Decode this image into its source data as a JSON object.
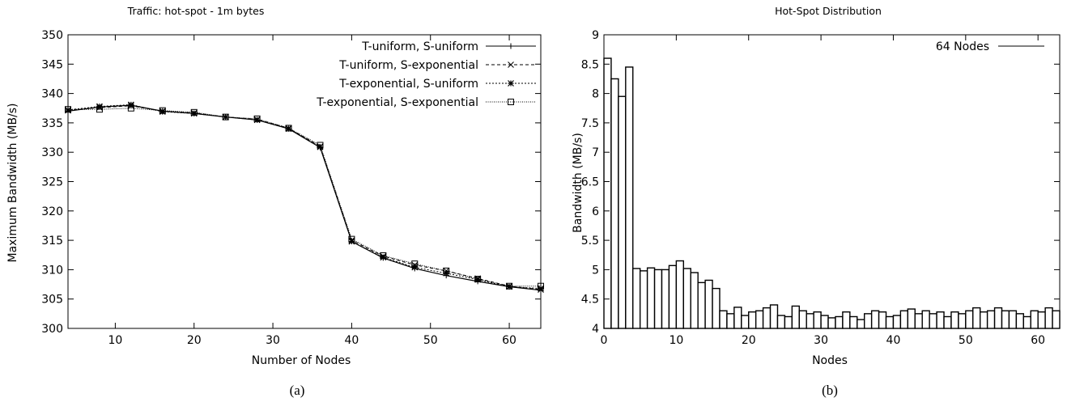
{
  "chart_data": [
    {
      "type": "line",
      "title": "Traffic: hot-spot - 1m bytes",
      "xlabel": "Number of Nodes",
      "ylabel": "Maximum Bandwidth (MB/s)",
      "caption": "(a)",
      "xlim": [
        4,
        64
      ],
      "ylim": [
        300,
        350
      ],
      "xticks": [
        10,
        20,
        30,
        40,
        50,
        60
      ],
      "yticks": [
        300,
        305,
        310,
        315,
        320,
        325,
        330,
        335,
        340,
        345,
        350
      ],
      "legend_position": "top-right",
      "x": [
        4,
        8,
        12,
        16,
        20,
        24,
        28,
        32,
        36,
        40,
        44,
        48,
        52,
        56,
        60,
        64
      ],
      "series": [
        {
          "name": "T-uniform, S-uniform",
          "marker": "plus",
          "dash": "solid",
          "values": [
            337.0,
            337.7,
            338.0,
            337.0,
            336.6,
            336.0,
            335.5,
            334.0,
            330.8,
            314.8,
            312.0,
            310.2,
            309.0,
            308.0,
            307.1,
            306.5
          ]
        },
        {
          "name": "T-uniform, S-exponential",
          "marker": "cross",
          "dash": "dashed",
          "values": [
            337.1,
            337.6,
            337.9,
            337.0,
            336.7,
            336.0,
            335.6,
            334.1,
            331.0,
            315.0,
            312.3,
            310.8,
            309.8,
            308.5,
            307.2,
            306.6
          ]
        },
        {
          "name": "T-exponential, S-uniform",
          "marker": "star",
          "dash": "dotted",
          "values": [
            337.2,
            337.8,
            338.1,
            336.9,
            336.6,
            336.0,
            335.5,
            334.0,
            330.9,
            314.8,
            312.1,
            310.4,
            309.4,
            308.3,
            307.1,
            306.8
          ]
        },
        {
          "name": "T-exponential, S-exponential",
          "marker": "square",
          "dash": "fine-dotted",
          "values": [
            337.3,
            337.3,
            337.5,
            337.1,
            336.8,
            336.0,
            335.7,
            334.1,
            331.2,
            315.2,
            312.4,
            311.0,
            309.8,
            308.4,
            307.2,
            307.2
          ]
        }
      ]
    },
    {
      "type": "bar",
      "title": "Hot-Spot Distribution",
      "xlabel": "Nodes",
      "ylabel": "Bandwidth (MB/s)",
      "caption": "(b)",
      "xlim": [
        0,
        63
      ],
      "ylim": [
        4,
        9
      ],
      "xticks": [
        0,
        10,
        20,
        30,
        40,
        50,
        60
      ],
      "yticks": [
        4,
        4.5,
        5,
        5.5,
        6,
        6.5,
        7,
        7.5,
        8,
        8.5,
        9
      ],
      "yticks_labels": [
        "4",
        "4.5",
        "5",
        "5.5",
        "6",
        "6.5",
        "7",
        "7.5",
        "8",
        "8.5",
        "9"
      ],
      "legend_position": "top-right",
      "series": [
        {
          "name": "64 Nodes",
          "values": [
            8.6,
            8.25,
            7.95,
            8.45,
            5.02,
            4.98,
            5.03,
            5.0,
            5.0,
            5.07,
            5.15,
            5.02,
            4.95,
            4.78,
            4.82,
            4.68,
            4.3,
            4.25,
            4.36,
            4.22,
            4.28,
            4.3,
            4.35,
            4.4,
            4.22,
            4.2,
            4.38,
            4.3,
            4.25,
            4.28,
            4.22,
            4.18,
            4.2,
            4.28,
            4.2,
            4.15,
            4.25,
            4.3,
            4.28,
            4.2,
            4.22,
            4.3,
            4.33,
            4.25,
            4.3,
            4.25,
            4.28,
            4.2,
            4.28,
            4.25,
            4.3,
            4.35,
            4.28,
            4.3,
            4.35,
            4.3,
            4.3,
            4.25,
            4.2,
            4.3,
            4.28,
            4.35,
            4.3,
            4.32
          ]
        }
      ]
    }
  ]
}
